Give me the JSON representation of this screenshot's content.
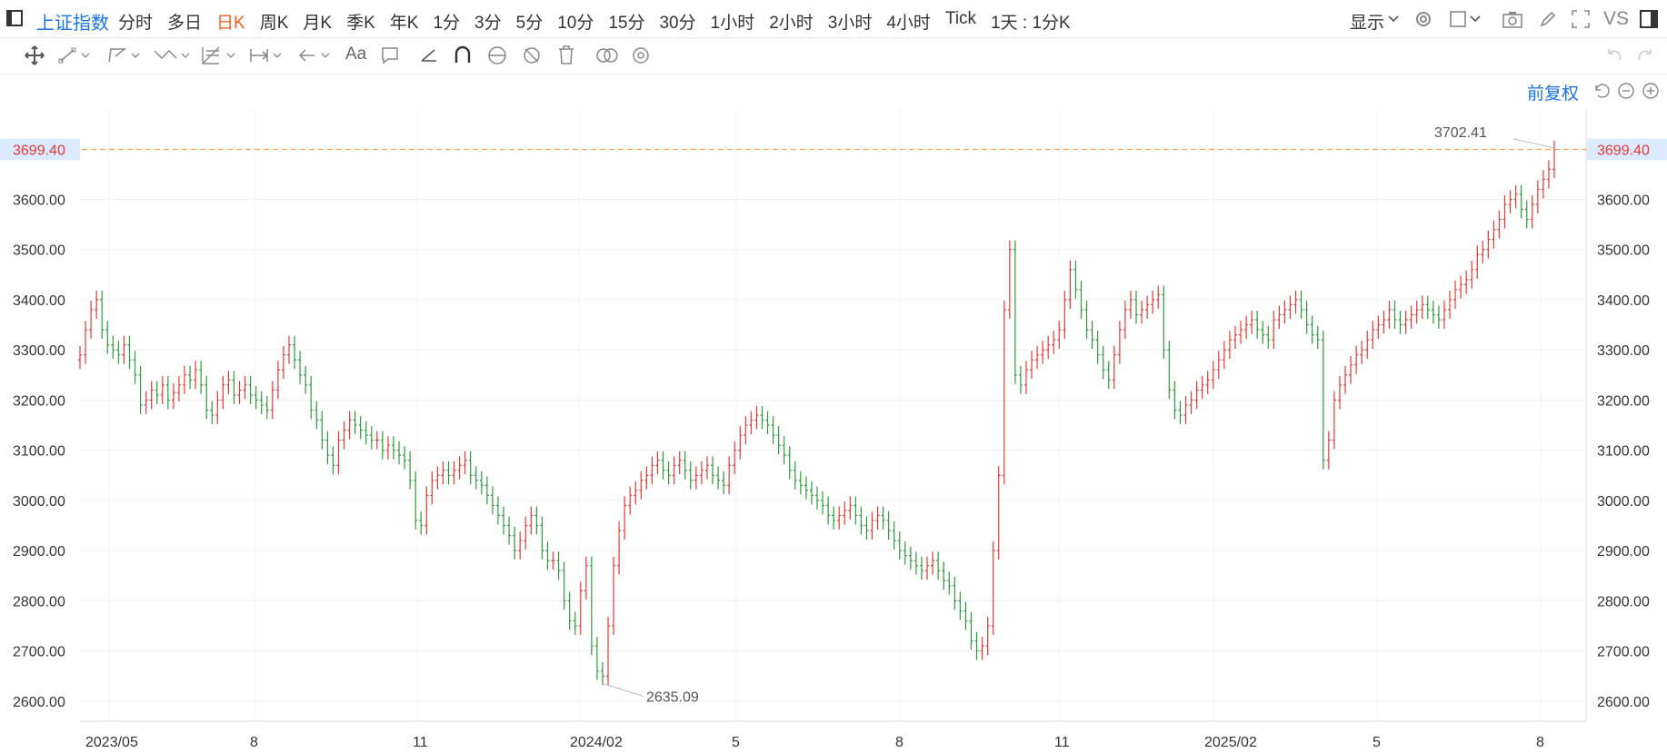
{
  "toolbar": {
    "symbol": "上证指数",
    "tabs": [
      {
        "label": "分时",
        "active": false
      },
      {
        "label": "多日",
        "active": false
      },
      {
        "label": "日K",
        "active": true
      },
      {
        "label": "周K",
        "active": false
      },
      {
        "label": "月K",
        "active": false
      },
      {
        "label": "季K",
        "active": false
      },
      {
        "label": "年K",
        "active": false
      },
      {
        "label": "1分",
        "active": false
      },
      {
        "label": "3分",
        "active": false
      },
      {
        "label": "5分",
        "active": false
      },
      {
        "label": "10分",
        "active": false
      },
      {
        "label": "15分",
        "active": false
      },
      {
        "label": "30分",
        "active": false
      },
      {
        "label": "1小时",
        "active": false
      },
      {
        "label": "2小时",
        "active": false
      },
      {
        "label": "3小时",
        "active": false
      },
      {
        "label": "4小时",
        "active": false
      },
      {
        "label": "Tick",
        "active": false
      },
      {
        "label": "1天 : 1分K",
        "active": false
      }
    ],
    "display_label": "显示",
    "vs_label": "VS"
  },
  "drawbar": {
    "text_tool": "Aa"
  },
  "adjust_label": "前复权",
  "colors": {
    "up": "#e53935",
    "down": "#2e9a3a",
    "accent": "#1a73e8",
    "price_line": "#f7a35c"
  },
  "chart_data": {
    "type": "candlestick",
    "ylim": [
      2560,
      3780
    ],
    "y_ticks": [
      "2600.00",
      "2700.00",
      "2800.00",
      "2900.00",
      "3000.00",
      "3100.00",
      "3200.00",
      "3300.00",
      "3400.00",
      "3500.00",
      "3600.00"
    ],
    "x_ticks": [
      "2023/05",
      "8",
      "11",
      "2024/02",
      "5",
      "8",
      "11",
      "2025/02",
      "5",
      "8"
    ],
    "current_price": "3699.40",
    "high_annotation": "3702.41",
    "low_annotation": "2635.09",
    "closes": [
      3290,
      3340,
      3380,
      3400,
      3340,
      3310,
      3300,
      3290,
      3310,
      3280,
      3250,
      3190,
      3200,
      3220,
      3210,
      3230,
      3200,
      3215,
      3230,
      3250,
      3240,
      3260,
      3230,
      3180,
      3170,
      3200,
      3230,
      3240,
      3210,
      3220,
      3230,
      3210,
      3200,
      3190,
      3180,
      3220,
      3260,
      3290,
      3310,
      3280,
      3250,
      3230,
      3180,
      3160,
      3120,
      3090,
      3070,
      3120,
      3140,
      3160,
      3150,
      3140,
      3130,
      3120,
      3120,
      3100,
      3110,
      3100,
      3090,
      3080,
      3040,
      2960,
      2950,
      3010,
      3040,
      3050,
      3060,
      3050,
      3060,
      3070,
      3080,
      3050,
      3040,
      3030,
      3010,
      2990,
      2970,
      2950,
      2930,
      2900,
      2920,
      2950,
      2970,
      2950,
      2900,
      2880,
      2880,
      2860,
      2800,
      2760,
      2750,
      2820,
      2870,
      2710,
      2660,
      2650,
      2750,
      2870,
      2940,
      2990,
      3010,
      3020,
      3040,
      3050,
      3070,
      3080,
      3060,
      3050,
      3070,
      3080,
      3060,
      3040,
      3050,
      3060,
      3070,
      3050,
      3040,
      3030,
      3070,
      3100,
      3130,
      3150,
      3160,
      3170,
      3160,
      3150,
      3130,
      3110,
      3090,
      3060,
      3040,
      3030,
      3020,
      3010,
      3000,
      2990,
      2970,
      2960,
      2970,
      2980,
      2990,
      2970,
      2950,
      2940,
      2960,
      2970,
      2960,
      2940,
      2920,
      2900,
      2890,
      2880,
      2870,
      2860,
      2870,
      2880,
      2860,
      2840,
      2830,
      2800,
      2780,
      2760,
      2720,
      2700,
      2710,
      2750,
      2900,
      3050,
      3380,
      3500,
      3250,
      3230,
      3260,
      3280,
      3290,
      3300,
      3310,
      3320,
      3340,
      3400,
      3460,
      3420,
      3380,
      3340,
      3320,
      3290,
      3260,
      3240,
      3290,
      3340,
      3380,
      3400,
      3370,
      3380,
      3390,
      3400,
      3410,
      3300,
      3220,
      3180,
      3170,
      3190,
      3200,
      3220,
      3230,
      3240,
      3260,
      3280,
      3300,
      3320,
      3330,
      3340,
      3350,
      3360,
      3340,
      3330,
      3320,
      3360,
      3370,
      3380,
      3390,
      3400,
      3380,
      3350,
      3330,
      3320,
      3080,
      3120,
      3200,
      3230,
      3250,
      3270,
      3290,
      3300,
      3320,
      3340,
      3350,
      3360,
      3380,
      3360,
      3350,
      3360,
      3370,
      3380,
      3390,
      3380,
      3370,
      3360,
      3380,
      3400,
      3420,
      3430,
      3440,
      3460,
      3490,
      3500,
      3520,
      3540,
      3560,
      3590,
      3600,
      3610,
      3580,
      3560,
      3590,
      3620,
      3640,
      3660,
      3699
    ]
  }
}
